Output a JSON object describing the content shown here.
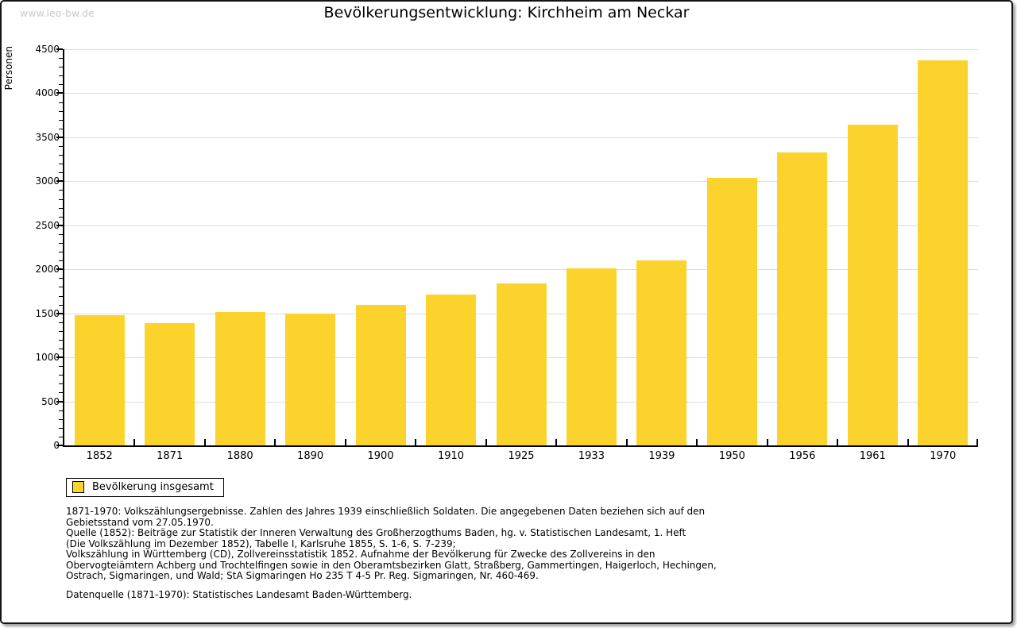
{
  "watermark": "www.leo-bw.de",
  "title": "Bevölkerungsentwicklung: Kirchheim am Neckar",
  "chart_data": {
    "type": "bar",
    "title": "Bevölkerungsentwicklung: Kirchheim am Neckar",
    "categories": [
      "1852",
      "1871",
      "1880",
      "1890",
      "1900",
      "1910",
      "1925",
      "1933",
      "1939",
      "1950",
      "1956",
      "1961",
      "1970"
    ],
    "values": [
      1475,
      1390,
      1515,
      1495,
      1600,
      1715,
      1840,
      2010,
      2105,
      3040,
      3330,
      3645,
      4370
    ],
    "series_name": "Bevölkerung insgesamt",
    "xlabel": "",
    "ylabel": "Personen",
    "ylim": [
      0,
      4500
    ],
    "ytick_step": 500,
    "yminor_step": 100,
    "grid": true,
    "legend_position": "bottom-left",
    "bar_color": "#FCD32D",
    "grid_color": "#dcdcdc",
    "axis_color": "#000000"
  },
  "legend": {
    "label": "Bevölkerung insgesamt"
  },
  "footnotes": [
    "1871-1970: Volkszählungsergebnisse. Zahlen des Jahres 1939 einschließlich Soldaten. Die angegebenen Daten beziehen sich auf den",
    "Gebietsstand vom 27.05.1970.",
    "Quelle (1852): Beiträge zur Statistik der Inneren Verwaltung des Großherzogthums Baden, hg. v. Statistischen Landesamt, 1. Heft",
    "(Die Volkszählung im Dezember 1852), Tabelle I, Karlsruhe 1855, S. 1-6, S. 7-239;",
    "Volkszählung in Württemberg (CD), Zollvereinsstatistik 1852. Aufnahme der Bevölkerung für Zwecke des Zollvereins in den",
    "Obervogteiämtern Achberg und Trochtelfingen sowie in den Oberamtsbezirken Glatt, Straßberg, Gammertingen, Haigerloch, Hechingen,",
    "Ostrach, Sigmaringen, und Wald; StA Sigmaringen Ho 235 T 4-5 Pr. Reg. Sigmaringen, Nr. 460-469."
  ],
  "datasource": "Datenquelle (1871-1970): Statistisches Landesamt Baden-Württemberg."
}
